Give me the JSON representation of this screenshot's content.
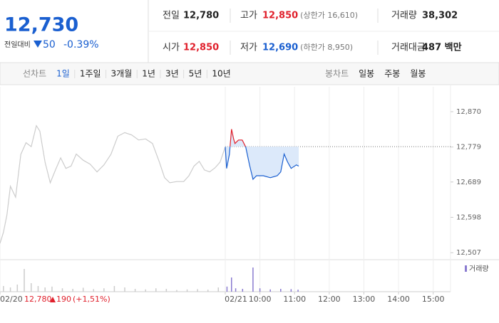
{
  "header": {
    "price": "12,730",
    "change_label": "전일대비",
    "change": "50",
    "change_rate": "-0.39%"
  },
  "info": [
    {
      "label": "전일",
      "value": "12,780",
      "color": "#222"
    },
    {
      "label": "고가",
      "value": "12,850",
      "note": "(상한가 16,610)",
      "color": "#e0202c"
    },
    {
      "label": "거래량",
      "value": "38,302",
      "color": "#222"
    },
    {
      "label": "시가",
      "value": "12,850",
      "color": "#e0202c"
    },
    {
      "label": "저가",
      "value": "12,690",
      "note": "(하한가 8,950)",
      "color": "#1a5fd0"
    },
    {
      "label": "거래대금",
      "value": "487 백만",
      "color": "#222"
    }
  ],
  "tabs": {
    "line_label": "선차트",
    "line_tabs": [
      "1일",
      "1주일",
      "3개월",
      "1년",
      "3년",
      "5년",
      "10년"
    ],
    "candle_label": "봉차트",
    "candle_tabs": [
      "일봉",
      "주봉",
      "월봉"
    ]
  },
  "prev_summary": {
    "price": "12,780",
    "change": "190",
    "rate": "(+1,51%)"
  },
  "chart_data": [
    {
      "type": "line",
      "reference": 12780,
      "xlim": [
        0,
        13
      ],
      "ylim": [
        12489,
        12934
      ],
      "yticks": [
        {
          "value": 12870,
          "label": "12,870"
        },
        {
          "value": 12779,
          "label": "12,779"
        },
        {
          "value": 12689,
          "label": "12,689"
        },
        {
          "value": 12598,
          "label": "12,598"
        },
        {
          "value": 12507,
          "label": "12,507"
        }
      ],
      "xticks": [
        {
          "value": 0,
          "label": "02/20"
        },
        {
          "value": 6.5,
          "label": "02/21"
        },
        {
          "value": 7.5,
          "label": "10:00"
        },
        {
          "value": 8.5,
          "label": "11:00"
        },
        {
          "value": 9.5,
          "label": "12:00"
        },
        {
          "value": 10.5,
          "label": "13:00"
        },
        {
          "value": 11.5,
          "label": "14:00"
        },
        {
          "value": 12.5,
          "label": "15:00"
        }
      ],
      "series": [
        {
          "color": "#cccccc",
          "x": [
            0,
            0.1,
            0.2,
            0.3,
            0.45,
            0.6,
            0.75,
            0.9,
            1.05,
            1.15,
            1.3,
            1.45,
            1.6,
            1.75,
            1.9,
            2.05,
            2.2,
            2.4,
            2.6,
            2.8,
            3.0,
            3.2,
            3.4,
            3.6,
            3.8,
            4.0,
            4.2,
            4.4,
            4.6,
            4.75,
            4.9,
            5.1,
            5.3,
            5.45,
            5.6,
            5.75,
            5.9,
            6.05,
            6.2,
            6.35,
            6.5
          ],
          "values": [
            12531,
            12560,
            12604,
            12678,
            12650,
            12760,
            12790,
            12780,
            12834,
            12820,
            12740,
            12687,
            12720,
            12751,
            12724,
            12730,
            12761,
            12745,
            12735,
            12715,
            12733,
            12760,
            12807,
            12816,
            12810,
            12797,
            12800,
            12788,
            12740,
            12700,
            12687,
            12690,
            12690,
            12705,
            12730,
            12742,
            12720,
            12715,
            12725,
            12740,
            12779
          ]
        },
        {
          "color": "#1a5fd0",
          "up_color": "#e0202c",
          "fill": "#dce9fa",
          "x": [
            6.5,
            6.54,
            6.62,
            6.68,
            6.74,
            6.78,
            6.88,
            6.99,
            7.09,
            7.2,
            7.3,
            7.4,
            7.6,
            7.8,
            8.0,
            8.1,
            8.2,
            8.3,
            8.4,
            8.55,
            8.62
          ],
          "values": [
            12779,
            12724,
            12760,
            12825,
            12800,
            12788,
            12797,
            12797,
            12779,
            12733,
            12696,
            12705,
            12705,
            12700,
            12705,
            12715,
            12761,
            12740,
            12724,
            12733,
            12730
          ]
        }
      ]
    },
    {
      "type": "bar",
      "ylim": [
        0,
        100
      ],
      "prev_color": "#cccccc",
      "series": [
        {
          "name": "거래량",
          "color": "#8a7bd0",
          "x": [
            0.1,
            0.3,
            0.5,
            0.7,
            0.9,
            1.1,
            1.3,
            1.5,
            1.8,
            2.1,
            2.4,
            2.7,
            3.0,
            3.3,
            3.6,
            3.9,
            4.2,
            4.5,
            4.8,
            5.1,
            5.4,
            5.7,
            6.0,
            6.3,
            6.55,
            6.68,
            6.8,
            7.0,
            7.3,
            7.5,
            7.8,
            8.1,
            8.4,
            8.6
          ],
          "values": [
            20,
            15,
            25,
            80,
            30,
            20,
            15,
            18,
            12,
            10,
            14,
            9,
            12,
            20,
            15,
            10,
            8,
            12,
            10,
            6,
            8,
            9,
            7,
            15,
            18,
            50,
            12,
            10,
            85,
            12,
            8,
            10,
            9,
            7
          ]
        }
      ]
    }
  ]
}
